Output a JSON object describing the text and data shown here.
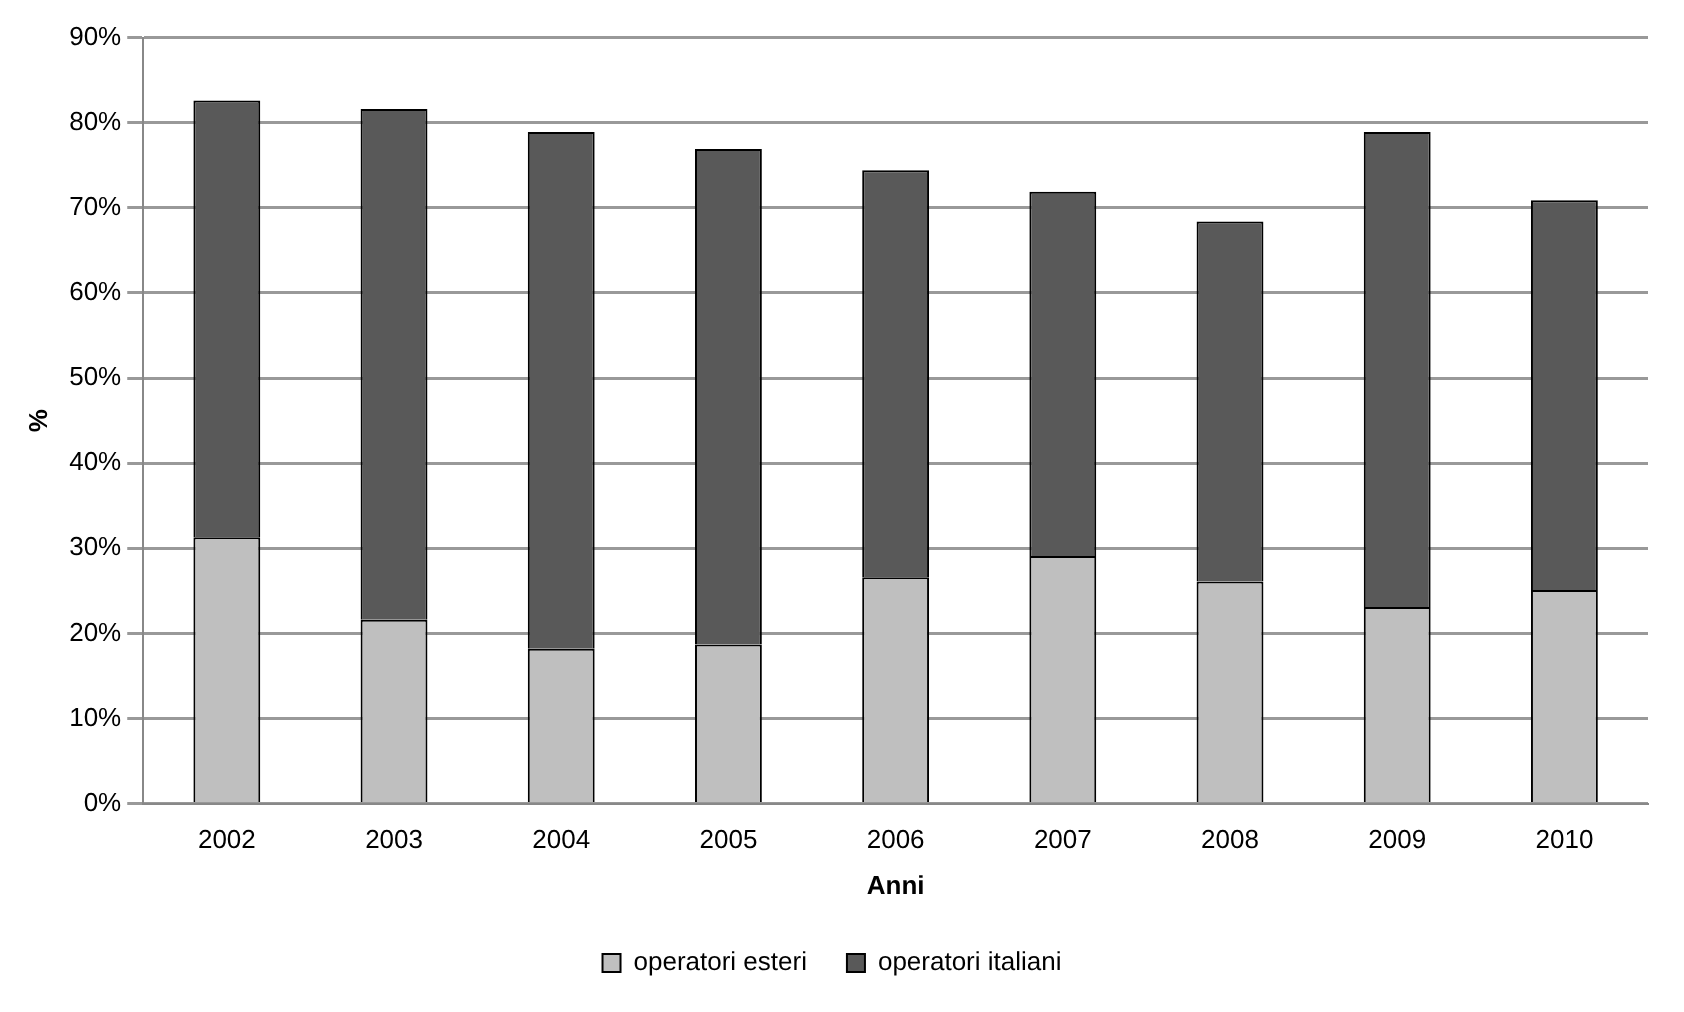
{
  "chart_data": {
    "type": "bar",
    "stacked": true,
    "xlabel": "Anni",
    "ylabel": "%",
    "categories": [
      "2002",
      "2003",
      "2004",
      "2005",
      "2006",
      "2007",
      "2008",
      "2009",
      "2010"
    ],
    "series": [
      {
        "name": "operatori esteri",
        "color": "#bfbfbf",
        "values": [
          31.3,
          21.6,
          18.2,
          18.7,
          26.6,
          29.1,
          26.1,
          23.1,
          25.1
        ]
      },
      {
        "name": "operatori italiani",
        "color": "#595959",
        "values": [
          51.3,
          60.0,
          60.7,
          58.2,
          47.8,
          42.8,
          42.3,
          55.8,
          45.8
        ]
      }
    ],
    "ylim": [
      0,
      90
    ],
    "yticks": [
      {
        "value": 0,
        "label": "0%"
      },
      {
        "value": 10,
        "label": "10%"
      },
      {
        "value": 20,
        "label": "20%"
      },
      {
        "value": 30,
        "label": "30%"
      },
      {
        "value": 40,
        "label": "40%"
      },
      {
        "value": 50,
        "label": "50%"
      },
      {
        "value": 60,
        "label": "60%"
      },
      {
        "value": 70,
        "label": "70%"
      },
      {
        "value": 80,
        "label": "80%"
      },
      {
        "value": 90,
        "label": "90%"
      }
    ],
    "grid": "y",
    "legend": "bottom"
  }
}
